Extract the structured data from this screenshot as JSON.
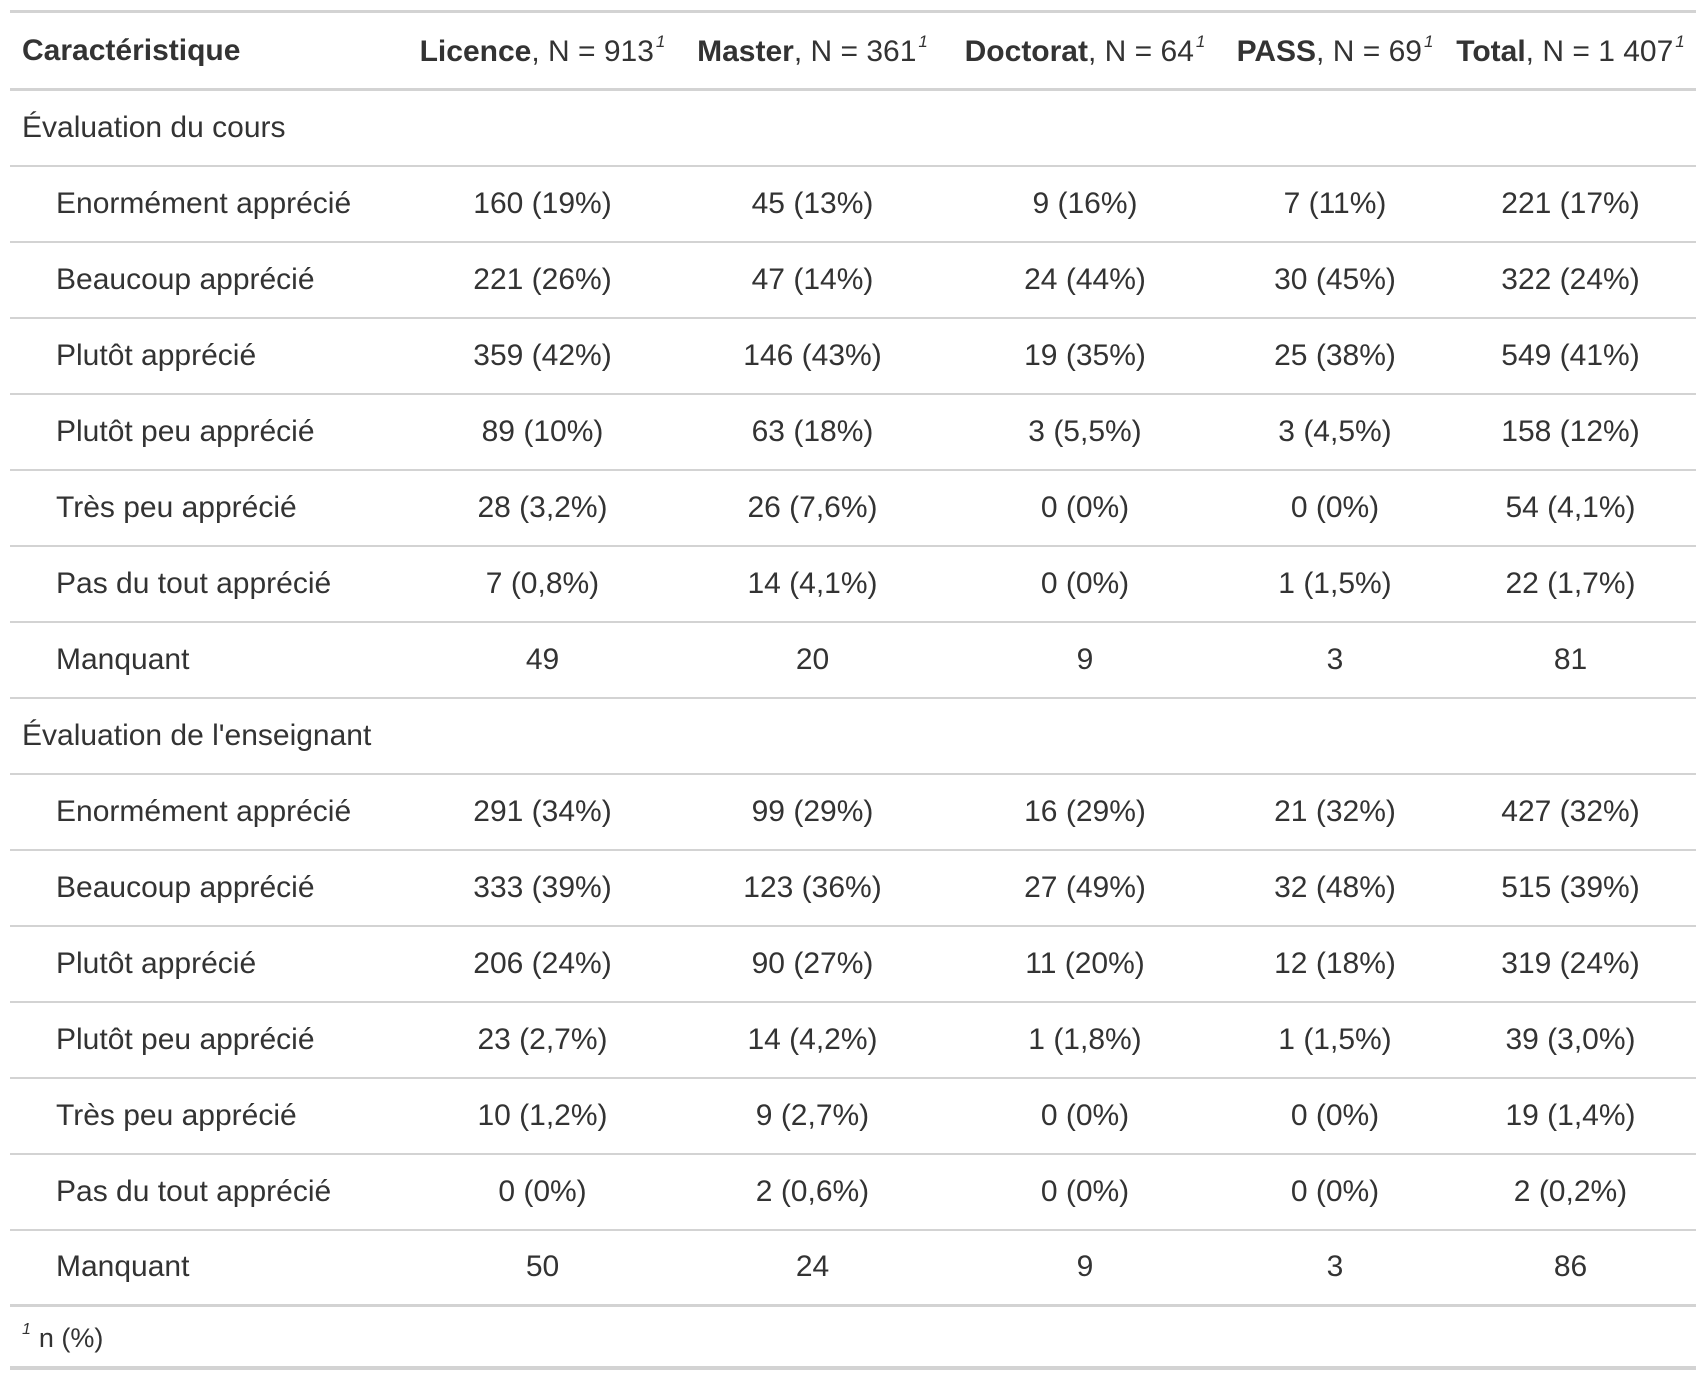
{
  "header": {
    "characteristic": "Caractéristique",
    "columns": [
      {
        "label": "Licence",
        "n": ", N = 913",
        "note": "1"
      },
      {
        "label": "Master",
        "n": ", N = 361",
        "note": "1"
      },
      {
        "label": "Doctorat",
        "n": ", N = 64",
        "note": "1"
      },
      {
        "label": "PASS",
        "n": ", N = 69",
        "note": "1"
      },
      {
        "label": "Total",
        "n": ", N = 1 407",
        "note": "1"
      }
    ]
  },
  "groups": [
    {
      "title": "Évaluation du cours",
      "rows": [
        {
          "label": "Enormément apprécié",
          "values": [
            "160 (19%)",
            "45 (13%)",
            "9 (16%)",
            "7 (11%)",
            "221 (17%)"
          ]
        },
        {
          "label": "Beaucoup apprécié",
          "values": [
            "221 (26%)",
            "47 (14%)",
            "24 (44%)",
            "30 (45%)",
            "322 (24%)"
          ]
        },
        {
          "label": "Plutôt apprécié",
          "values": [
            "359 (42%)",
            "146 (43%)",
            "19 (35%)",
            "25 (38%)",
            "549 (41%)"
          ]
        },
        {
          "label": "Plutôt peu apprécié",
          "values": [
            "89 (10%)",
            "63 (18%)",
            "3 (5,5%)",
            "3 (4,5%)",
            "158 (12%)"
          ]
        },
        {
          "label": "Très peu apprécié",
          "values": [
            "28 (3,2%)",
            "26 (7,6%)",
            "0 (0%)",
            "0 (0%)",
            "54 (4,1%)"
          ]
        },
        {
          "label": "Pas du tout apprécié",
          "values": [
            "7 (0,8%)",
            "14 (4,1%)",
            "0 (0%)",
            "1 (1,5%)",
            "22 (1,7%)"
          ]
        },
        {
          "label": "Manquant",
          "values": [
            "49",
            "20",
            "9",
            "3",
            "81"
          ]
        }
      ]
    },
    {
      "title": "Évaluation de l'enseignant",
      "rows": [
        {
          "label": "Enormément apprécié",
          "values": [
            "291 (34%)",
            "99 (29%)",
            "16 (29%)",
            "21 (32%)",
            "427 (32%)"
          ]
        },
        {
          "label": "Beaucoup apprécié",
          "values": [
            "333 (39%)",
            "123 (36%)",
            "27 (49%)",
            "32 (48%)",
            "515 (39%)"
          ]
        },
        {
          "label": "Plutôt apprécié",
          "values": [
            "206 (24%)",
            "90 (27%)",
            "11 (20%)",
            "12 (18%)",
            "319 (24%)"
          ]
        },
        {
          "label": "Plutôt peu apprécié",
          "values": [
            "23 (2,7%)",
            "14 (4,2%)",
            "1 (1,8%)",
            "1 (1,5%)",
            "39 (3,0%)"
          ]
        },
        {
          "label": "Très peu apprécié",
          "values": [
            "10 (1,2%)",
            "9 (2,7%)",
            "0 (0%)",
            "0 (0%)",
            "19 (1,4%)"
          ]
        },
        {
          "label": "Pas du tout apprécié",
          "values": [
            "0 (0%)",
            "2 (0,6%)",
            "0 (0%)",
            "0 (0%)",
            "2 (0,2%)"
          ]
        },
        {
          "label": "Manquant",
          "values": [
            "50",
            "24",
            "9",
            "3",
            "86"
          ]
        }
      ]
    }
  ],
  "footnote": {
    "mark": "1",
    "text": "n (%)"
  }
}
